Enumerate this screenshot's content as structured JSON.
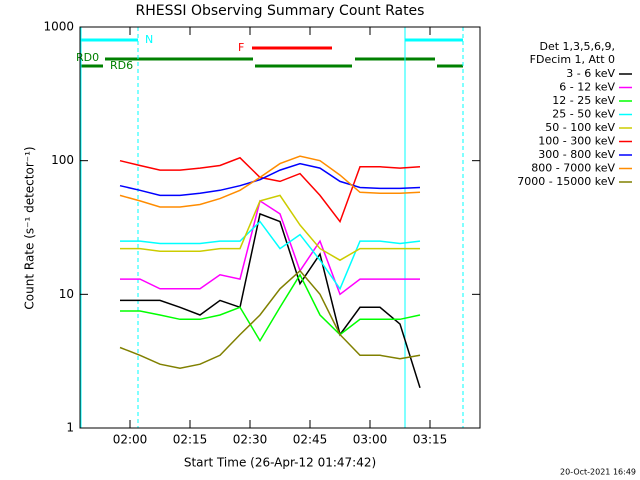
{
  "chart_data": {
    "type": "line",
    "title": "RHESSI Observing Summary Count Rates",
    "x_label": "Start Time (26-Apr-12 01:47:42)",
    "y_label": "Count Rate (s⁻¹ detector⁻¹)",
    "footer": "20-Oct-2021 16:49",
    "legend_header": [
      "Det 1,3,5,6,9,",
      "FDecim 1, Att 0"
    ],
    "annotations": [
      "RD0",
      "RD6",
      "N",
      "F"
    ],
    "log_y": true,
    "xlim": [
      107.5,
      207.5
    ],
    "xticks": [
      {
        "value": 120,
        "label": "02:00"
      },
      {
        "value": 135,
        "label": "02:15"
      },
      {
        "value": 150,
        "label": "02:30"
      },
      {
        "value": 165,
        "label": "02:45"
      },
      {
        "value": 180,
        "label": "03:00"
      },
      {
        "value": 195,
        "label": "03:15"
      }
    ],
    "ylim": [
      1,
      1000
    ],
    "yticks": [
      1,
      10,
      100,
      1000
    ],
    "x": [
      117.5,
      122.5,
      127.5,
      132.5,
      137.5,
      142.5,
      147.5,
      152.5,
      157.5,
      162.5,
      167.5,
      172.5,
      177.5,
      182.5,
      187.5,
      192.5
    ],
    "series": [
      {
        "name": "3 - 6 keV",
        "color": "#000000",
        "values": [
          9,
          9,
          9,
          8,
          7,
          9,
          8,
          40,
          35,
          12,
          20,
          5,
          8,
          8,
          6,
          2
        ]
      },
      {
        "name": "6 - 12 keV",
        "color": "#ff00ff",
        "values": [
          13,
          13,
          11,
          11,
          11,
          14,
          13,
          50,
          40,
          15,
          25,
          10,
          13,
          13,
          13,
          13
        ]
      },
      {
        "name": "12 - 25 keV",
        "color": "#00ff00",
        "values": [
          7.5,
          7.5,
          7,
          6.5,
          6.5,
          7,
          8,
          4.5,
          8,
          14,
          7,
          5,
          6.5,
          6.5,
          6.5,
          7
        ]
      },
      {
        "name": "25 - 50 keV",
        "color": "#00ffff",
        "values": [
          25,
          25,
          24,
          24,
          24,
          25,
          25,
          35,
          22,
          28,
          18,
          11,
          25,
          25,
          24,
          25
        ]
      },
      {
        "name": "50 - 100 keV",
        "color": "#cccc00",
        "values": [
          22,
          22,
          21,
          21,
          21,
          22,
          22,
          50,
          55,
          33,
          22,
          18,
          22,
          22,
          22,
          22
        ]
      },
      {
        "name": "100 - 300 keV",
        "color": "#ff0000",
        "values": [
          100,
          92,
          85,
          85,
          88,
          92,
          105,
          75,
          70,
          80,
          55,
          35,
          90,
          90,
          88,
          90
        ]
      },
      {
        "name": "300 - 800 keV",
        "color": "#0000ff",
        "values": [
          65,
          60,
          55,
          55,
          57,
          60,
          65,
          72,
          85,
          95,
          88,
          70,
          63,
          62,
          62,
          63
        ]
      },
      {
        "name": "800 - 7000 keV",
        "color": "#ff8c00",
        "values": [
          55,
          50,
          45,
          45,
          47,
          52,
          60,
          75,
          95,
          108,
          100,
          78,
          58,
          57,
          57,
          58
        ]
      },
      {
        "name": "7000 - 15000 keV",
        "color": "#808000",
        "values": [
          4,
          3.5,
          3,
          2.8,
          3,
          3.5,
          5,
          7,
          11,
          15,
          10,
          5,
          3.5,
          3.5,
          3.3,
          3.5
        ]
      }
    ]
  }
}
